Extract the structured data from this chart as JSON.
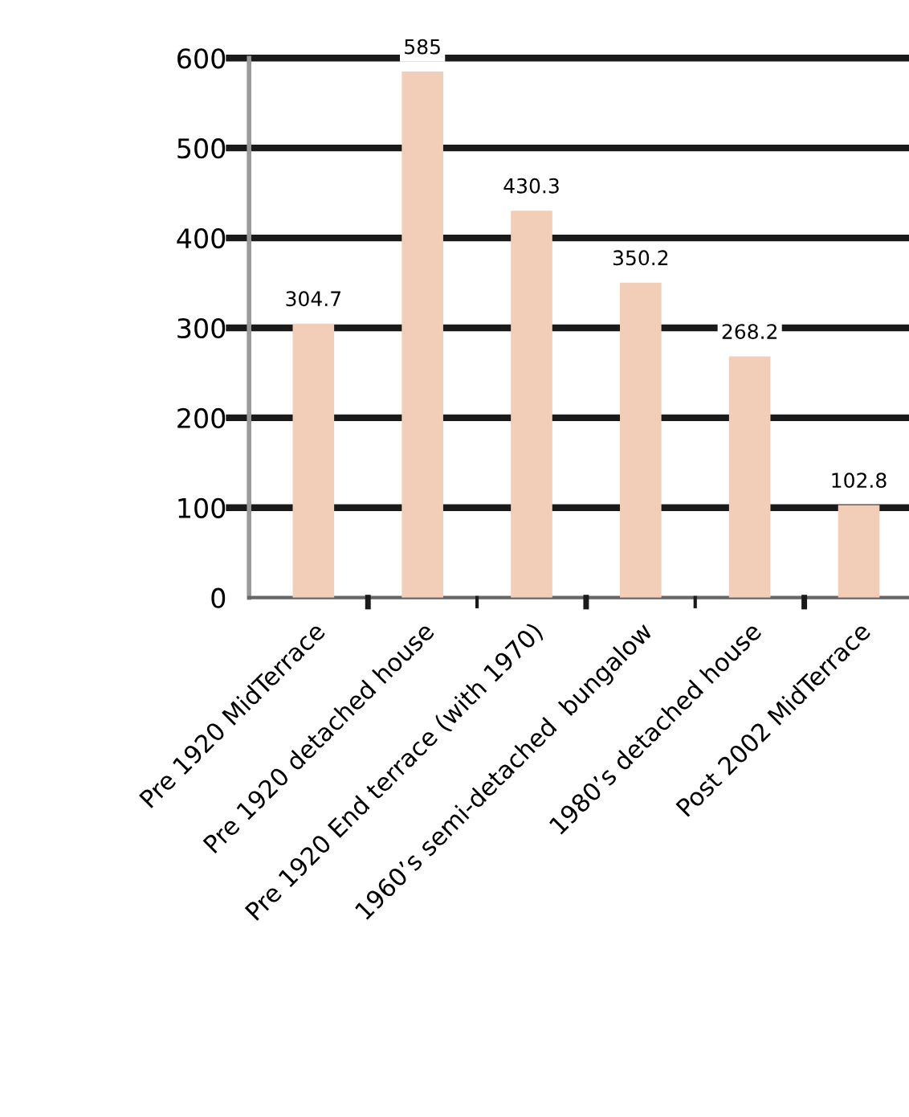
{
  "chart_data": {
    "type": "bar",
    "categories": [
      "Pre 1920 MidTerrace",
      "Pre 1920 detached house",
      "Pre 1920 End terrace (with 1970)",
      "1960’s semi-detached  bungalow",
      "1980’s detached house",
      "Post 2002 MidTerrace"
    ],
    "values": [
      304.7,
      585,
      430.3,
      350.2,
      268.2,
      102.8
    ],
    "color": "#f2cdb7",
    "ylim": [
      0,
      600
    ],
    "yticks": [
      0,
      100,
      200,
      300,
      400,
      500,
      600
    ],
    "grid": "y",
    "data_labels": true
  }
}
